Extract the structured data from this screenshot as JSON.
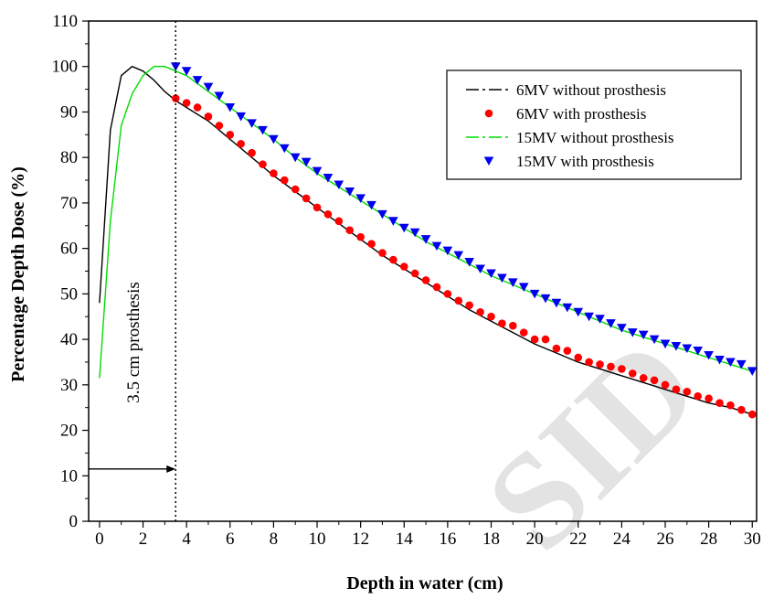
{
  "chart_data": {
    "type": "line",
    "title": "",
    "xlabel": "Depth in water (cm)",
    "ylabel": "Percentage Depth Dose (%)",
    "xlim": [
      -0.5,
      30.2
    ],
    "ylim": [
      0,
      110
    ],
    "xticks": [
      0,
      2,
      4,
      6,
      8,
      10,
      12,
      14,
      16,
      18,
      20,
      22,
      24,
      26,
      28,
      30
    ],
    "yticks": [
      0,
      10,
      20,
      30,
      40,
      50,
      60,
      70,
      80,
      90,
      100,
      110
    ],
    "grid": false,
    "legend_position": "top-right",
    "series": [
      {
        "name": "6MV without prosthesis",
        "kind": "line",
        "color": "#000000",
        "x": [
          0,
          0.5,
          1,
          1.5,
          2,
          2.5,
          3,
          3.5,
          4,
          5,
          6,
          7,
          8,
          9,
          10,
          11,
          12,
          13,
          14,
          15,
          16,
          17,
          18,
          19,
          20,
          21,
          22,
          23,
          24,
          25,
          26,
          27,
          28,
          29,
          30
        ],
        "y": [
          48,
          86,
          98,
          100,
          99,
          97,
          94.5,
          92.5,
          91,
          88,
          84,
          80,
          76,
          72.5,
          69,
          65.5,
          62,
          58.5,
          55.5,
          52.5,
          49.5,
          46.5,
          44,
          41.5,
          39,
          37,
          35,
          33.5,
          32,
          30.5,
          29,
          27.5,
          26,
          25,
          23.5
        ]
      },
      {
        "name": "6MV with prosthesis",
        "kind": "scatter",
        "marker": "circle",
        "color": "#ff0000",
        "x": [
          3.5,
          4,
          4.5,
          5,
          5.5,
          6,
          6.5,
          7,
          7.5,
          8,
          8.5,
          9,
          9.5,
          10,
          10.5,
          11,
          11.5,
          12,
          12.5,
          13,
          13.5,
          14,
          14.5,
          15,
          15.5,
          16,
          16.5,
          17,
          17.5,
          18,
          18.5,
          19,
          19.5,
          20,
          20.5,
          21,
          21.5,
          22,
          22.5,
          23,
          23.5,
          24,
          24.5,
          25,
          25.5,
          26,
          26.5,
          27,
          27.5,
          28,
          28.5,
          29,
          29.5,
          30
        ],
        "y": [
          93,
          92,
          91,
          89,
          87,
          85,
          83,
          81,
          78.5,
          76.5,
          75,
          73,
          71,
          69,
          67.5,
          66,
          64,
          62.5,
          61,
          59,
          57.5,
          56,
          54.5,
          53,
          51.5,
          50,
          48.5,
          47.5,
          46,
          45,
          43.5,
          43,
          41.5,
          40,
          40,
          38,
          37.5,
          36,
          35,
          34.5,
          34,
          33.5,
          32.5,
          31.5,
          31,
          30,
          29,
          28.5,
          27.5,
          27,
          26,
          25.5,
          24.5,
          23.5
        ]
      },
      {
        "name": "15MV without prosthesis",
        "kind": "line",
        "color": "#00dd00",
        "x": [
          0,
          0.5,
          1,
          1.5,
          2,
          2.5,
          3,
          3.5,
          4,
          5,
          6,
          7,
          8,
          9,
          10,
          11,
          12,
          13,
          14,
          15,
          16,
          17,
          18,
          19,
          20,
          21,
          22,
          23,
          24,
          25,
          26,
          27,
          28,
          29,
          30
        ],
        "y": [
          31.5,
          66,
          87,
          94,
          98,
          100,
          100,
          99,
          98,
          94.5,
          91,
          87.5,
          84,
          80,
          76.5,
          73.5,
          70.5,
          67.5,
          64.5,
          61.5,
          59,
          56.5,
          54,
          52,
          50,
          48,
          46,
          44,
          42,
          40.5,
          39,
          37.5,
          36,
          34.5,
          33
        ]
      },
      {
        "name": "15MV with prosthesis",
        "kind": "scatter",
        "marker": "triangle-down",
        "color": "#0000ee",
        "x": [
          3.5,
          4,
          4.5,
          5,
          5.5,
          6,
          6.5,
          7,
          7.5,
          8,
          8.5,
          9,
          9.5,
          10,
          10.5,
          11,
          11.5,
          12,
          12.5,
          13,
          13.5,
          14,
          14.5,
          15,
          15.5,
          16,
          16.5,
          17,
          17.5,
          18,
          18.5,
          19,
          19.5,
          20,
          20.5,
          21,
          21.5,
          22,
          22.5,
          23,
          23.5,
          24,
          24.5,
          25,
          25.5,
          26,
          26.5,
          27,
          27.5,
          28,
          28.5,
          29,
          29.5,
          30
        ],
        "y": [
          100,
          99,
          97,
          95.5,
          93.5,
          91,
          89,
          87.5,
          86,
          84,
          82,
          80,
          79,
          77,
          75.5,
          74,
          72.5,
          71,
          69.5,
          67.5,
          66,
          64.5,
          63.5,
          62,
          60.5,
          59.5,
          58.5,
          57,
          55.5,
          54.5,
          53.5,
          52.5,
          51.5,
          50,
          49,
          48,
          47,
          46,
          45,
          44.5,
          43.5,
          42.5,
          41.5,
          41,
          40,
          39,
          38.5,
          38,
          37.5,
          36.5,
          35.5,
          35,
          34.5,
          33
        ]
      }
    ],
    "annotations": {
      "marker_line_x": 3.5,
      "prosthesis_label": "3.5 cm prosthesis",
      "arrow_y": 11.5,
      "arrow_from_x": -0.5,
      "arrow_to_x": 3.5
    },
    "watermark_text": "SID"
  }
}
